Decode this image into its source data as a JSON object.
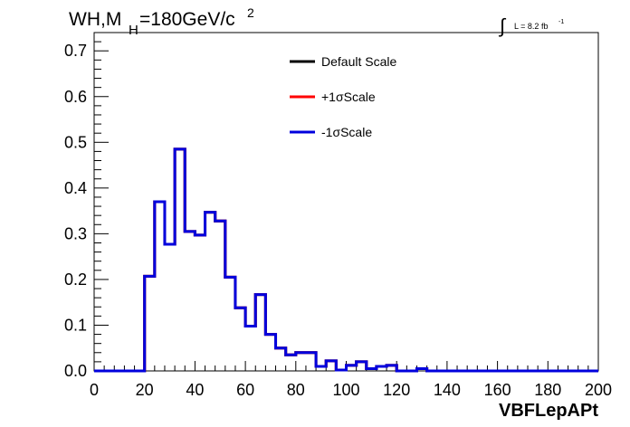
{
  "chart_data": {
    "type": "line",
    "title_main": "WH,M",
    "title_sub": "H",
    "title_rest": "=180GeV/c",
    "title_sup": "2",
    "lumi_label": "L = 8.2 fb",
    "lumi_sup": "-1",
    "xlabel": "VBFLepAPt",
    "ylabel": "",
    "xlim": [
      0,
      200
    ],
    "ylim": [
      0,
      0.74
    ],
    "x_ticks": [
      0,
      20,
      40,
      60,
      80,
      100,
      120,
      140,
      160,
      180,
      200
    ],
    "y_ticks": [
      0.0,
      0.1,
      0.2,
      0.3,
      0.4,
      0.5,
      0.6,
      0.7
    ],
    "y_tick_labels": [
      "0.0",
      "0.1",
      "0.2",
      "0.3",
      "0.4",
      "0.5",
      "0.6",
      "0.7"
    ],
    "grid": false,
    "legend_position": "top-center",
    "bin_width": 4,
    "bin_edges": [
      0,
      4,
      8,
      12,
      16,
      20,
      24,
      28,
      32,
      36,
      40,
      44,
      48,
      52,
      56,
      60,
      64,
      68,
      72,
      76,
      80,
      84,
      88,
      92,
      96,
      100,
      104,
      108,
      112,
      116,
      120,
      124,
      128,
      132,
      136,
      140,
      144,
      148,
      152,
      156,
      160,
      164,
      168,
      172,
      176,
      180,
      184,
      188,
      192,
      196,
      200
    ],
    "series": [
      {
        "name": "Default Scale",
        "color": "#000000",
        "values": [
          0,
          0,
          0,
          0,
          0,
          0.207,
          0.37,
          0.277,
          0.485,
          0.305,
          0.297,
          0.347,
          0.328,
          0.205,
          0.138,
          0.098,
          0.167,
          0.08,
          0.05,
          0.035,
          0.04,
          0.04,
          0.01,
          0.022,
          0.002,
          0.012,
          0.02,
          0.005,
          0.01,
          0.012,
          0,
          0,
          0.005,
          0,
          0,
          0,
          0,
          0,
          0,
          0,
          0,
          0,
          0,
          0,
          0,
          0,
          0,
          0,
          0,
          0
        ]
      },
      {
        "name": "+1σScale",
        "color": "#ff0000",
        "values": [
          0,
          0,
          0,
          0,
          0,
          0.207,
          0.37,
          0.277,
          0.485,
          0.305,
          0.297,
          0.347,
          0.328,
          0.205,
          0.138,
          0.098,
          0.167,
          0.08,
          0.05,
          0.035,
          0.04,
          0.04,
          0.01,
          0.022,
          0.002,
          0.012,
          0.02,
          0.005,
          0.01,
          0.012,
          0,
          0,
          0.005,
          0,
          0,
          0,
          0,
          0,
          0,
          0,
          0,
          0,
          0,
          0,
          0,
          0,
          0,
          0,
          0,
          0
        ]
      },
      {
        "name": "-1σScale",
        "color": "#0000dd",
        "values": [
          0,
          0,
          0,
          0,
          0,
          0.207,
          0.37,
          0.277,
          0.485,
          0.305,
          0.297,
          0.347,
          0.328,
          0.205,
          0.138,
          0.098,
          0.167,
          0.08,
          0.05,
          0.035,
          0.04,
          0.04,
          0.01,
          0.022,
          0.002,
          0.012,
          0.02,
          0.005,
          0.01,
          0.012,
          0,
          0,
          0.005,
          0,
          0,
          0,
          0,
          0,
          0,
          0,
          0,
          0,
          0,
          0,
          0,
          0,
          0,
          0,
          0,
          0
        ]
      }
    ]
  }
}
